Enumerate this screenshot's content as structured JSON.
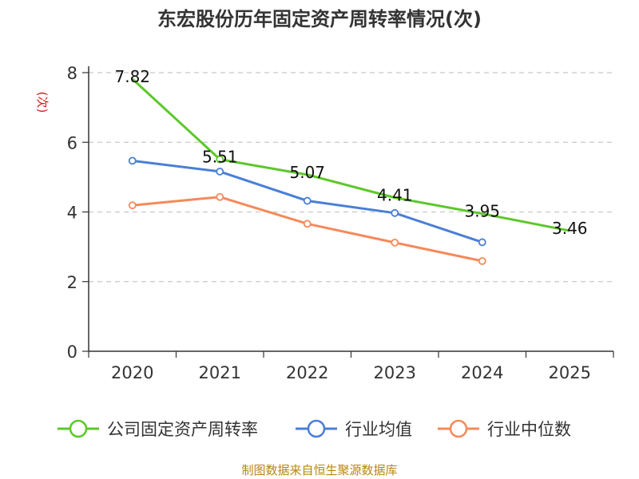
{
  "chart_data": {
    "type": "line",
    "title": "东宏股份历年固定资产周转率情况(次)",
    "ylabel": "(次)",
    "xlabel": "",
    "ylim": [
      0,
      8
    ],
    "yticks": [
      0,
      2,
      4,
      6,
      8
    ],
    "categories": [
      "2020",
      "2021",
      "2022",
      "2023",
      "2024",
      "2025"
    ],
    "grid": true,
    "legend_position": "bottom",
    "series": [
      {
        "name": "公司固定资产周转率",
        "color": "#5cc72a",
        "values": [
          7.82,
          5.51,
          5.07,
          4.41,
          3.95,
          3.46
        ],
        "labels": [
          "7.82",
          "5.51",
          "5.07",
          "4.41",
          "3.95",
          "3.46"
        ],
        "markers": [
          false,
          true,
          false,
          false,
          false,
          false
        ]
      },
      {
        "name": "行业均值",
        "color": "#4a7fd6",
        "values": [
          5.47,
          5.16,
          4.32,
          3.97,
          3.13,
          null
        ]
      },
      {
        "name": "行业中位数",
        "color": "#f5895a",
        "values": [
          4.19,
          4.43,
          3.66,
          3.12,
          2.59,
          null
        ]
      }
    ]
  },
  "source": "制图数据来自恒生聚源数据库"
}
